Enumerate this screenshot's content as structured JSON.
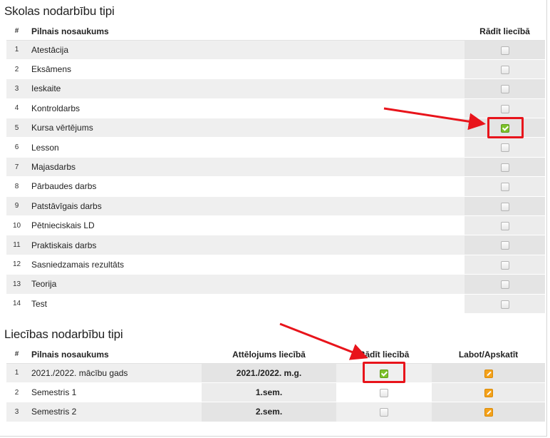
{
  "school_types": {
    "title": "Skolas nodarbību tipi",
    "columns": {
      "num": "#",
      "name": "Pilnais nosaukums",
      "show": "Rādīt liecībā"
    },
    "rows": [
      {
        "num": "1",
        "name": "Atestācija",
        "show": false
      },
      {
        "num": "2",
        "name": "Eksāmens",
        "show": false
      },
      {
        "num": "3",
        "name": "Ieskaite",
        "show": false
      },
      {
        "num": "4",
        "name": "Kontroldarbs",
        "show": false
      },
      {
        "num": "5",
        "name": "Kursa vērtējums",
        "show": true
      },
      {
        "num": "6",
        "name": "Lesson",
        "show": false
      },
      {
        "num": "7",
        "name": "Majasdarbs",
        "show": false
      },
      {
        "num": "8",
        "name": "Pārbaudes darbs",
        "show": false
      },
      {
        "num": "9",
        "name": "Patstāvīgais darbs",
        "show": false
      },
      {
        "num": "10",
        "name": "Pētnieciskais LD",
        "show": false
      },
      {
        "num": "11",
        "name": "Praktiskais darbs",
        "show": false
      },
      {
        "num": "12",
        "name": "Sasniedzamais rezultāts",
        "show": false
      },
      {
        "num": "13",
        "name": "Teorija",
        "show": false
      },
      {
        "num": "14",
        "name": "Test",
        "show": false
      }
    ]
  },
  "report_types": {
    "title": "Liecības nodarbību tipi",
    "columns": {
      "num": "#",
      "name": "Pilnais nosaukums",
      "display": "Attēlojums liecībā",
      "show": "Rādīt liecībā",
      "edit": "Labot/Apskatīt"
    },
    "rows": [
      {
        "num": "1",
        "name": "2021./2022. mācību gads",
        "display": "2021./2022. m.g.",
        "show": true
      },
      {
        "num": "2",
        "name": "Semestris 1",
        "display": "1.sem.",
        "show": false
      },
      {
        "num": "3",
        "name": "Semestris 2",
        "display": "2.sem.",
        "show": false
      }
    ]
  },
  "icons": {
    "edit": "edit-pencil-icon",
    "checkbox": "checkbox-icon"
  },
  "colors": {
    "check": "#7cc22a",
    "edit": "#f4a21b",
    "highlight": "#e8141b"
  }
}
